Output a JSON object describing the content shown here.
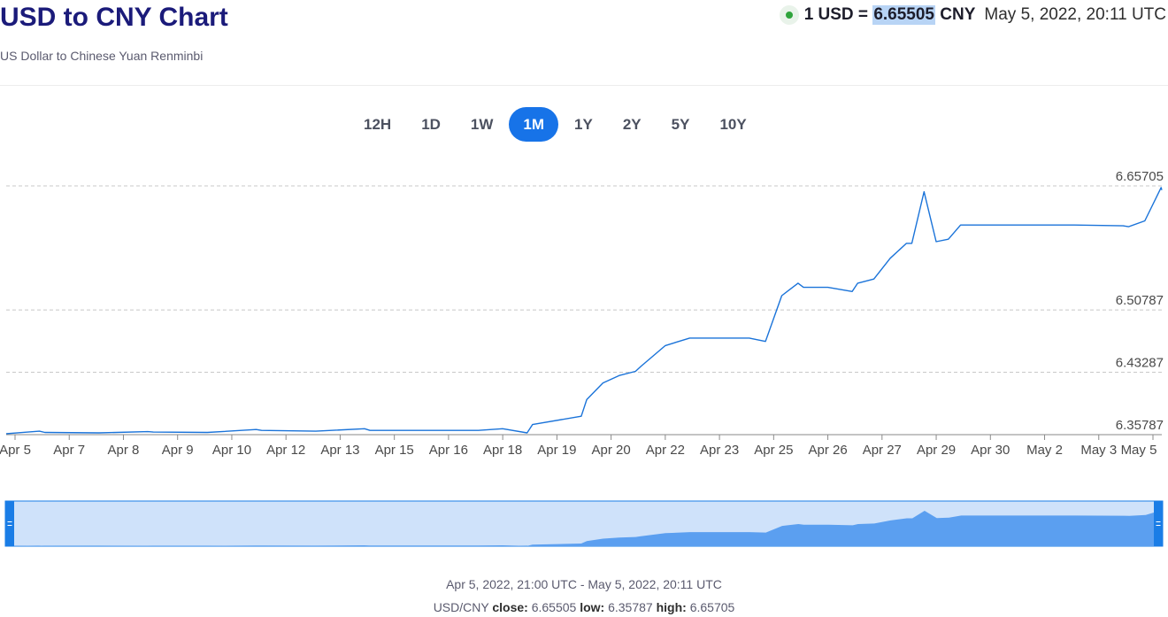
{
  "header": {
    "title": "USD to CNY Chart",
    "subtitle": "US Dollar to Chinese Yuan Renminbi",
    "rate_prefix": "1 USD = ",
    "rate_value": "6.65505",
    "rate_suffix": " CNY",
    "timestamp": "May 5, 2022, 20:11 UTC"
  },
  "ranges": [
    {
      "label": "12H",
      "active": false
    },
    {
      "label": "1D",
      "active": false
    },
    {
      "label": "1W",
      "active": false
    },
    {
      "label": "1M",
      "active": true
    },
    {
      "label": "1Y",
      "active": false
    },
    {
      "label": "2Y",
      "active": false
    },
    {
      "label": "5Y",
      "active": false
    },
    {
      "label": "10Y",
      "active": false
    }
  ],
  "colors": {
    "line": "#1a73d9",
    "navigator_fill": "#5b9ff0",
    "navigator_bg": "#cfe2fa",
    "navigator_border": "#1a7de6"
  },
  "chart_data": {
    "type": "line",
    "title": "",
    "xlabel": "",
    "ylabel": "",
    "x_tick_labels": [
      "Apr 5",
      "Apr 7",
      "Apr 8",
      "Apr 9",
      "Apr 10",
      "Apr 12",
      "Apr 13",
      "Apr 15",
      "Apr 16",
      "Apr 18",
      "Apr 19",
      "Apr 20",
      "Apr 22",
      "Apr 23",
      "Apr 25",
      "Apr 26",
      "Apr 27",
      "Apr 29",
      "Apr 30",
      "May 2",
      "May 3",
      "May 5"
    ],
    "y_tick_labels": [
      "6.65705",
      "6.50787",
      "6.43287",
      "6.35787"
    ],
    "ylim": [
      6.35787,
      6.65705
    ],
    "grid": "horizontal dashed",
    "series": [
      {
        "x": [
          "Apr 5",
          "Apr 5",
          "Apr 7",
          "Apr 8",
          "Apr 8",
          "Apr 9",
          "Apr 10",
          "Apr 10",
          "Apr 12",
          "Apr 13",
          "Apr 13",
          "Apr 15",
          "Apr 16",
          "Apr 18",
          "Apr 18",
          "Apr 18",
          "Apr 19",
          "Apr 19",
          "Apr 20",
          "Apr 20",
          "Apr 20",
          "Apr 20",
          "Apr 22",
          "Apr 22",
          "Apr 22",
          "Apr 23",
          "Apr 25",
          "Apr 25",
          "Apr 25",
          "Apr 25",
          "Apr 26",
          "Apr 26",
          "Apr 26",
          "Apr 27",
          "Apr 27",
          "Apr 27",
          "Apr 27",
          "Apr 29",
          "Apr 29",
          "Apr 29",
          "Apr 29",
          "Apr 29",
          "Apr 30",
          "May 2",
          "May 3",
          "May 3",
          "May 5",
          "May 5",
          "May 5",
          "May 5"
        ],
        "y": [
          6.359,
          6.362,
          6.3605,
          6.36,
          6.3615,
          6.361,
          6.3605,
          6.364,
          6.363,
          6.362,
          6.365,
          6.363,
          6.363,
          6.363,
          6.365,
          6.36,
          6.37,
          6.38,
          6.4,
          6.42,
          6.429,
          6.434,
          6.44,
          6.465,
          6.474,
          6.474,
          6.474,
          6.47,
          6.525,
          6.54,
          6.535,
          6.535,
          6.53,
          6.54,
          6.545,
          6.57,
          6.588,
          6.588,
          6.65,
          6.59,
          6.593,
          6.61,
          6.61,
          6.61,
          6.61,
          6.609,
          6.608,
          6.615,
          6.655,
          6.652
        ]
      }
    ]
  },
  "navigator": {
    "label": "Apr 5, 2022, 21:00 UTC - May 5, 2022, 20:11 UTC"
  },
  "footer": {
    "pair": "USD/CNY",
    "close_label": "close:",
    "close_value": "6.65505",
    "low_label": "low:",
    "low_value": "6.35787",
    "high_label": "high:",
    "high_value": "6.65705"
  }
}
